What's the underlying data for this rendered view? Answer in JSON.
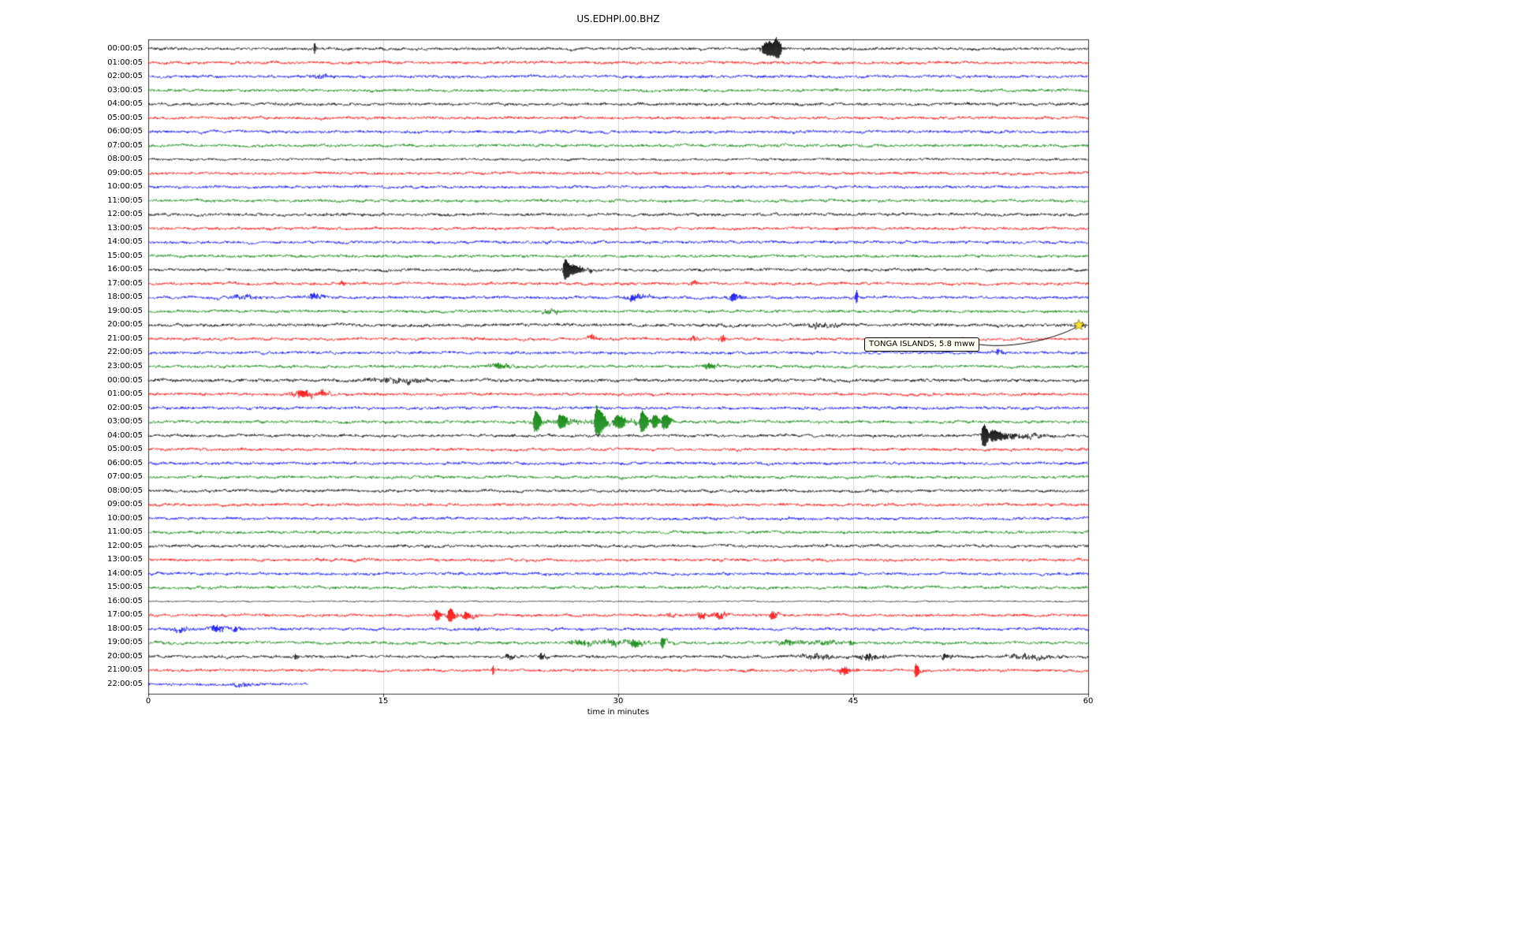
{
  "chart_data": {
    "type": "line",
    "subtype": "seismogram-helicorder-dayplot",
    "title": "US.EDHPI.00.BHZ",
    "xlabel": "time in minutes",
    "x_range": [
      0,
      60
    ],
    "x_ticks": [
      0,
      15,
      30,
      45,
      60
    ],
    "grid_x_minutes": [
      15,
      30,
      45
    ],
    "colors": {
      "black": "#000000",
      "red": "#ff0000",
      "blue": "#0000ff",
      "green": "#008000",
      "grid": "#cccccc",
      "frame": "#000000"
    },
    "color_cycle": [
      "black",
      "red",
      "blue",
      "green"
    ],
    "rows": [
      {
        "label": "00:00:05",
        "color": "black"
      },
      {
        "label": "01:00:05",
        "color": "red"
      },
      {
        "label": "02:00:05",
        "color": "blue"
      },
      {
        "label": "03:00:05",
        "color": "green"
      },
      {
        "label": "04:00:05",
        "color": "black"
      },
      {
        "label": "05:00:05",
        "color": "red"
      },
      {
        "label": "06:00:05",
        "color": "blue"
      },
      {
        "label": "07:00:05",
        "color": "green"
      },
      {
        "label": "08:00:05",
        "color": "black",
        "amp": 0.85
      },
      {
        "label": "09:00:05",
        "color": "red"
      },
      {
        "label": "10:00:05",
        "color": "blue"
      },
      {
        "label": "11:00:05",
        "color": "green"
      },
      {
        "label": "12:00:05",
        "color": "black"
      },
      {
        "label": "13:00:05",
        "color": "red"
      },
      {
        "label": "14:00:05",
        "color": "blue"
      },
      {
        "label": "15:00:05",
        "color": "green"
      },
      {
        "label": "16:00:05",
        "color": "black"
      },
      {
        "label": "17:00:05",
        "color": "red"
      },
      {
        "label": "18:00:05",
        "color": "blue"
      },
      {
        "label": "19:00:05",
        "color": "green"
      },
      {
        "label": "20:00:05",
        "color": "black",
        "amp": 1.1
      },
      {
        "label": "21:00:05",
        "color": "red"
      },
      {
        "label": "22:00:05",
        "color": "blue"
      },
      {
        "label": "23:00:05",
        "color": "green"
      },
      {
        "label": "00:00:05",
        "color": "black",
        "amp": 1.15
      },
      {
        "label": "01:00:05",
        "color": "red"
      },
      {
        "label": "02:00:05",
        "color": "blue"
      },
      {
        "label": "03:00:05",
        "color": "green"
      },
      {
        "label": "04:00:05",
        "color": "black"
      },
      {
        "label": "05:00:05",
        "color": "red"
      },
      {
        "label": "06:00:05",
        "color": "blue"
      },
      {
        "label": "07:00:05",
        "color": "green"
      },
      {
        "label": "08:00:05",
        "color": "black"
      },
      {
        "label": "09:00:05",
        "color": "red"
      },
      {
        "label": "10:00:05",
        "color": "blue"
      },
      {
        "label": "11:00:05",
        "color": "green"
      },
      {
        "label": "12:00:05",
        "color": "black"
      },
      {
        "label": "13:00:05",
        "color": "red"
      },
      {
        "label": "14:00:05",
        "color": "blue"
      },
      {
        "label": "15:00:05",
        "color": "green"
      },
      {
        "label": "16:00:05",
        "color": "black",
        "amp": 0.45
      },
      {
        "label": "17:00:05",
        "color": "red"
      },
      {
        "label": "18:00:05",
        "color": "blue"
      },
      {
        "label": "19:00:05",
        "color": "green"
      },
      {
        "label": "20:00:05",
        "color": "black"
      },
      {
        "label": "21:00:05",
        "color": "red"
      },
      {
        "label": "22:00:05",
        "color": "blue",
        "x_end": 10.2
      }
    ],
    "events": [
      {
        "row": 0,
        "c": 10.6,
        "a": 4,
        "wl": 0.05,
        "wr": 0.12
      },
      {
        "row": 0,
        "c": 39.6,
        "a": 5,
        "wl": 0.45,
        "wr": 0.5
      },
      {
        "row": 0,
        "c": 40.1,
        "a": 6,
        "wl": 0.15,
        "wr": 0.35
      },
      {
        "row": 2,
        "c": 10.7,
        "a": 1.3,
        "wl": 0.6,
        "wr": 0.8
      },
      {
        "row": 16,
        "c": 26.6,
        "a": 8,
        "wl": 0.12,
        "wr": 0.35
      },
      {
        "row": 16,
        "c": 27.2,
        "a": 3,
        "wl": 0.2,
        "wr": 0.9
      },
      {
        "row": 17,
        "c": 12.4,
        "a": 2,
        "wl": 0.1,
        "wr": 0.2
      },
      {
        "row": 17,
        "c": 34.8,
        "a": 1.8,
        "wl": 0.15,
        "wr": 0.25
      },
      {
        "row": 18,
        "c": 5.8,
        "a": 2.2,
        "wl": 0.5,
        "wr": 0.8
      },
      {
        "row": 18,
        "c": 10.6,
        "a": 2.2,
        "wl": 0.4,
        "wr": 0.6
      },
      {
        "row": 18,
        "c": 31.0,
        "a": 2.2,
        "wl": 0.5,
        "wr": 0.8
      },
      {
        "row": 18,
        "c": 37.3,
        "a": 3,
        "wl": 0.25,
        "wr": 0.45
      },
      {
        "row": 18,
        "c": 45.2,
        "a": 5,
        "wl": 0.06,
        "wr": 0.1
      },
      {
        "row": 19,
        "c": 25.5,
        "a": 2,
        "wl": 0.4,
        "wr": 0.8
      },
      {
        "row": 20,
        "c": 42.9,
        "a": 1.5,
        "wl": 0.8,
        "wr": 1.2
      },
      {
        "row": 20,
        "c": 59.4,
        "a": 2.2,
        "wl": 0.25,
        "wr": 0.4
      },
      {
        "row": 21,
        "c": 28.3,
        "a": 2.2,
        "wl": 0.25,
        "wr": 0.4
      },
      {
        "row": 21,
        "c": 34.8,
        "a": 1.8,
        "wl": 0.2,
        "wr": 0.3
      },
      {
        "row": 21,
        "c": 36.6,
        "a": 2.2,
        "wl": 0.2,
        "wr": 0.4
      },
      {
        "row": 22,
        "c": 54.2,
        "a": 2,
        "wl": 0.2,
        "wr": 0.4
      },
      {
        "row": 23,
        "c": 22.3,
        "a": 2.5,
        "wl": 0.4,
        "wr": 0.8
      },
      {
        "row": 23,
        "c": 35.8,
        "a": 2.5,
        "wl": 0.3,
        "wr": 0.5
      },
      {
        "row": 24,
        "c": 16.0,
        "a": 1.2,
        "wl": 1.5,
        "wr": 1.5
      },
      {
        "row": 25,
        "c": 9.8,
        "a": 2.8,
        "wl": 0.6,
        "wr": 0.9
      },
      {
        "row": 25,
        "c": 11.2,
        "a": 2.2,
        "wl": 0.2,
        "wr": 0.4
      },
      {
        "row": 27,
        "c": 24.7,
        "a": 7,
        "wl": 0.12,
        "wr": 0.35
      },
      {
        "row": 27,
        "c": 26.3,
        "a": 4.5,
        "wl": 0.15,
        "wr": 0.4
      },
      {
        "row": 27,
        "c": 28.6,
        "a": 10,
        "wl": 0.1,
        "wr": 0.45
      },
      {
        "row": 27,
        "c": 30.0,
        "a": 3,
        "wl": 0.25,
        "wr": 0.5
      },
      {
        "row": 27,
        "c": 31.5,
        "a": 7.5,
        "wl": 0.1,
        "wr": 0.35
      },
      {
        "row": 27,
        "c": 32.3,
        "a": 4,
        "wl": 0.15,
        "wr": 0.3
      },
      {
        "row": 27,
        "c": 32.9,
        "a": 4.5,
        "wl": 0.12,
        "wr": 0.5
      },
      {
        "row": 27,
        "c": 29.0,
        "a": 1.5,
        "wl": 3.5,
        "wr": 3.5
      },
      {
        "row": 28,
        "c": 53.3,
        "a": 9,
        "wl": 0.1,
        "wr": 0.3
      },
      {
        "row": 28,
        "c": 53.9,
        "a": 3.5,
        "wl": 0.2,
        "wr": 1.2
      },
      {
        "row": 28,
        "c": 55.6,
        "a": 1.8,
        "wl": 0.5,
        "wr": 1.4
      },
      {
        "row": 41,
        "c": 18.4,
        "a": 3.5,
        "wl": 0.15,
        "wr": 0.35
      },
      {
        "row": 41,
        "c": 19.2,
        "a": 4.5,
        "wl": 0.12,
        "wr": 0.4
      },
      {
        "row": 41,
        "c": 20.3,
        "a": 2.8,
        "wl": 0.25,
        "wr": 0.5
      },
      {
        "row": 41,
        "c": 33.3,
        "a": 1.8,
        "wl": 0.15,
        "wr": 0.25
      },
      {
        "row": 41,
        "c": 35.3,
        "a": 2.5,
        "wl": 0.3,
        "wr": 0.5
      },
      {
        "row": 41,
        "c": 36.4,
        "a": 2.5,
        "wl": 0.3,
        "wr": 0.5
      },
      {
        "row": 41,
        "c": 39.8,
        "a": 3,
        "wl": 0.15,
        "wr": 0.35
      },
      {
        "row": 42,
        "c": 2.0,
        "a": 2.2,
        "wl": 0.3,
        "wr": 0.5
      },
      {
        "row": 42,
        "c": 4.3,
        "a": 2.6,
        "wl": 0.3,
        "wr": 0.6
      },
      {
        "row": 42,
        "c": 5.5,
        "a": 1.8,
        "wl": 0.2,
        "wr": 0.4
      },
      {
        "row": 42,
        "c": 21.0,
        "a": 1.5,
        "wl": 0.15,
        "wr": 0.25
      },
      {
        "row": 43,
        "c": 27.5,
        "a": 2.2,
        "wl": 0.5,
        "wr": 1.0
      },
      {
        "row": 43,
        "c": 29.5,
        "a": 2.2,
        "wl": 0.5,
        "wr": 1.0
      },
      {
        "row": 43,
        "c": 31.0,
        "a": 2.6,
        "wl": 0.3,
        "wr": 0.8
      },
      {
        "row": 43,
        "c": 32.8,
        "a": 3.5,
        "wl": 0.1,
        "wr": 0.3
      },
      {
        "row": 43,
        "c": 40.8,
        "a": 1.8,
        "wl": 0.5,
        "wr": 1.0
      },
      {
        "row": 43,
        "c": 43.0,
        "a": 1.8,
        "wl": 0.5,
        "wr": 1.0
      },
      {
        "row": 43,
        "c": 44.8,
        "a": 2.2,
        "wl": 0.1,
        "wr": 0.2
      },
      {
        "row": 44,
        "c": 9.4,
        "a": 2.2,
        "wl": 0.08,
        "wr": 0.18
      },
      {
        "row": 44,
        "c": 23.0,
        "a": 2.2,
        "wl": 0.2,
        "wr": 0.4
      },
      {
        "row": 44,
        "c": 25.1,
        "a": 2.6,
        "wl": 0.15,
        "wr": 0.3
      },
      {
        "row": 44,
        "c": 42.5,
        "a": 1.8,
        "wl": 0.8,
        "wr": 1.2
      },
      {
        "row": 44,
        "c": 46.0,
        "a": 2.2,
        "wl": 0.5,
        "wr": 0.8
      },
      {
        "row": 44,
        "c": 50.8,
        "a": 2.2,
        "wl": 0.2,
        "wr": 0.4
      },
      {
        "row": 44,
        "c": 56.2,
        "a": 1.8,
        "wl": 1.0,
        "wr": 1.4
      },
      {
        "row": 45,
        "c": 22.0,
        "a": 4,
        "wl": 0.05,
        "wr": 0.1
      },
      {
        "row": 45,
        "c": 44.4,
        "a": 2.8,
        "wl": 0.3,
        "wr": 0.6
      },
      {
        "row": 45,
        "c": 49.0,
        "a": 4.5,
        "wl": 0.08,
        "wr": 0.25
      },
      {
        "row": 46,
        "c": 6.0,
        "a": 1.4,
        "wl": 0.5,
        "wr": 0.8
      }
    ],
    "annotation": {
      "text": "TONGA ISLANDS, 5.8 mww",
      "row": 20,
      "x_min": 59.4,
      "marker": "star",
      "marker_color": "#ffe135",
      "marker_outline": "#8a7a00"
    }
  }
}
